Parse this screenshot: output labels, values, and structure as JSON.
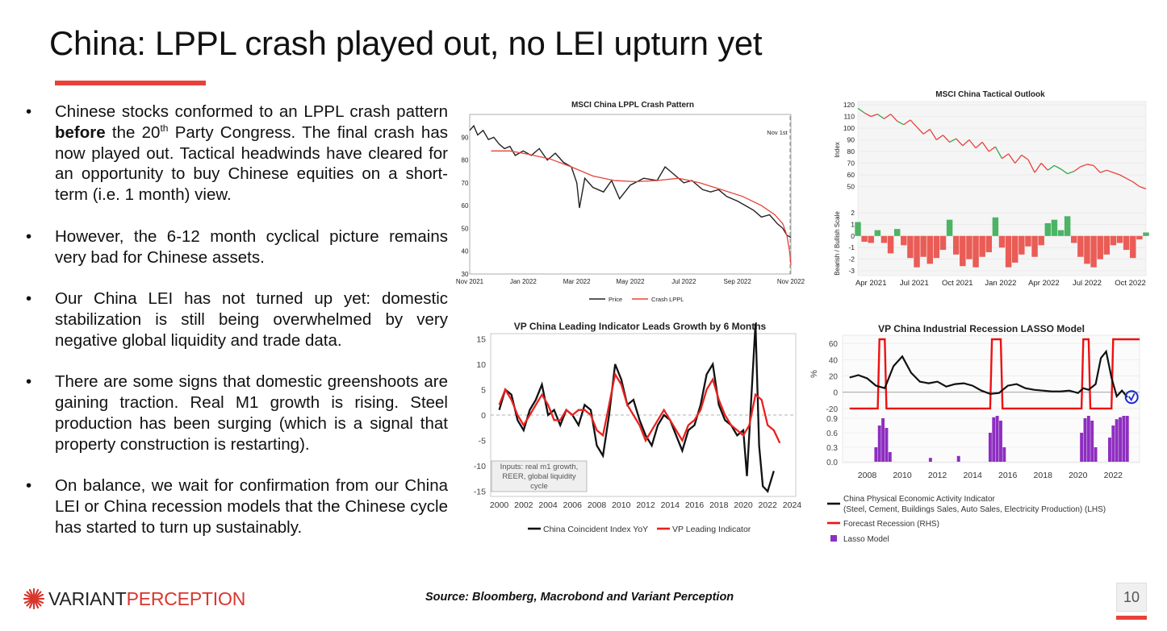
{
  "slide": {
    "title": "China: LPPL crash played out, no LEI upturn yet",
    "page_number": "10",
    "source": "Source: Bloomberg, Macrobond and Variant Perception",
    "accent_color": "#e8413a",
    "logo": {
      "part1": "VARIANT",
      "part2": "PERCEPTION",
      "icon": "starburst-icon"
    }
  },
  "bullets": [
    {
      "segments": [
        {
          "text": "Chinese stocks conformed to an LPPL crash pattern "
        },
        {
          "text": "before",
          "bold": true
        },
        {
          "text": " the 20"
        },
        {
          "text": "th",
          "sup": true
        },
        {
          "text": " Party Congress.  The final crash has now played out.  Tactical headwinds have cleared for an opportunity to buy Chinese equities on a short-term (i.e. 1 month) view."
        }
      ]
    },
    {
      "segments": [
        {
          "text": "However, the 6-12 month cyclical picture remains very bad for Chinese assets."
        }
      ]
    },
    {
      "segments": [
        {
          "text": "Our China LEI has not turned up yet: domestic stabilization is still being overwhelmed by very negative global liquidity and trade data."
        }
      ]
    },
    {
      "segments": [
        {
          "text": "There are some signs that domestic greenshoots are gaining traction.  Real M1 growth is rising. Steel production has been surging (which is a signal that property construction is restarting)."
        }
      ]
    },
    {
      "segments": [
        {
          "text": "On balance, we wait for confirmation from our China LEI or China recession models that the Chinese cycle has started to turn up sustainably."
        }
      ]
    }
  ],
  "chart_data": [
    {
      "id": "lppl",
      "type": "line",
      "title": "MSCI China LPPL Crash Pattern",
      "x_ticks": [
        "Nov 2021",
        "Jan 2022",
        "Mar 2022",
        "May 2022",
        "Jul 2022",
        "Sep 2022",
        "Nov 2022"
      ],
      "ylim": [
        30,
        100
      ],
      "y_ticks": [
        30,
        40,
        50,
        60,
        70,
        80,
        90
      ],
      "annotation": "Nov 1st",
      "annotation_x": 11.97,
      "grid": false,
      "legend_position": "bottom",
      "series": [
        {
          "name": "Price",
          "color": "#222222",
          "x": [
            0,
            0.15,
            0.3,
            0.5,
            0.7,
            0.9,
            1.1,
            1.3,
            1.5,
            1.7,
            2.0,
            2.3,
            2.6,
            2.9,
            3.2,
            3.5,
            3.8,
            4.0,
            4.1,
            4.3,
            4.6,
            5.0,
            5.3,
            5.6,
            6.0,
            6.5,
            7.0,
            7.3,
            7.6,
            8.0,
            8.3,
            8.7,
            9.0,
            9.3,
            9.6,
            10.0,
            10.3,
            10.6,
            10.9,
            11.2,
            11.5,
            11.7,
            11.85,
            12.0
          ],
          "values": [
            93,
            95,
            91,
            93,
            89,
            90,
            87,
            85,
            86,
            82,
            84,
            82,
            85,
            80,
            83,
            79,
            77,
            70,
            59,
            72,
            68,
            66,
            71,
            63,
            69,
            72,
            71,
            77,
            74,
            70,
            71,
            67,
            66,
            67,
            64,
            62,
            60,
            58,
            55,
            56,
            52,
            50,
            47,
            46
          ]
        },
        {
          "name": "Crash LPPL",
          "color": "#e8413a",
          "x": [
            0.8,
            1.5,
            2.2,
            3.0,
            3.8,
            4.6,
            5.4,
            6.2,
            7.0,
            7.8,
            8.6,
            9.4,
            10.2,
            10.9,
            11.4,
            11.7,
            11.85,
            11.95,
            12.0
          ],
          "values": [
            84,
            84,
            82.5,
            80.5,
            77,
            73,
            71,
            70.5,
            71,
            72,
            70,
            67,
            64,
            60,
            56,
            52,
            47,
            40,
            34
          ]
        }
      ]
    },
    {
      "id": "tactical",
      "type": "line",
      "title": "MSCI China Tactical Outlook",
      "x_ticks": [
        "Apr 2021",
        "Jul 2021",
        "Oct 2021",
        "Jan 2022",
        "Apr 2022",
        "Jul 2022",
        "Oct 2022"
      ],
      "top_ylabel": "Index",
      "top_ylim": [
        40,
        120
      ],
      "top_y_ticks": [
        50,
        60,
        70,
        80,
        90,
        100,
        110,
        120
      ],
      "bottom_ylabel": "Bearish / Bullish Scale",
      "bottom_ylim": [
        -3,
        2
      ],
      "bottom_y_ticks": [
        -3,
        -2,
        -1,
        0,
        1,
        2
      ],
      "colors": {
        "bullish": "#2ea84a",
        "bearish": "#e8413a"
      },
      "series": [
        {
          "name": "Index",
          "x": [
            0,
            0.5,
            1.0,
            1.5,
            2.0,
            2.5,
            3.0,
            3.5,
            4.0,
            4.5,
            5.0,
            5.5,
            6.0,
            6.5,
            7.0,
            7.5,
            8.0,
            8.5,
            9.0,
            9.5,
            10.0,
            10.5,
            11.0,
            11.5,
            12.0,
            12.5,
            13.0,
            13.5,
            14.0,
            14.5,
            15.0,
            15.5,
            16.0,
            16.5,
            17.0,
            17.5,
            18.0,
            18.5,
            19.0,
            19.5,
            20.0,
            20.5,
            21.0,
            21.5,
            22.0
          ],
          "values": [
            117,
            113,
            110,
            112,
            108,
            112,
            106,
            103,
            107,
            101,
            95,
            99,
            90,
            94,
            88,
            91,
            85,
            90,
            83,
            88,
            80,
            84,
            74,
            78,
            70,
            77,
            73,
            62,
            70,
            64,
            68,
            65,
            61,
            63,
            67,
            69,
            68,
            62,
            64,
            62,
            60,
            57,
            54,
            50,
            48
          ]
        },
        {
          "name": "Bearish / Bullish Scale",
          "x": [
            0,
            0.5,
            1.0,
            1.5,
            2.0,
            2.5,
            3.0,
            3.5,
            4.0,
            4.5,
            5.0,
            5.5,
            6.0,
            6.5,
            7.0,
            7.5,
            8.0,
            8.5,
            9.0,
            9.5,
            10.0,
            10.5,
            11.0,
            11.5,
            12.0,
            12.5,
            13.0,
            13.5,
            14.0,
            14.5,
            15.0,
            15.5,
            16.0,
            16.5,
            17.0,
            17.5,
            18.0,
            18.5,
            19.0,
            19.5,
            20.0,
            20.5,
            21.0,
            21.5,
            22.0
          ],
          "values": [
            1.2,
            -0.5,
            -0.6,
            0.5,
            -0.6,
            -1.5,
            0.6,
            -0.8,
            -1.9,
            -2.7,
            -1.8,
            -2.4,
            -1.9,
            -1.2,
            1.4,
            -1.6,
            -2.6,
            -2.0,
            -2.7,
            -1.8,
            -1.4,
            1.6,
            -1.0,
            -2.7,
            -2.3,
            -1.6,
            -0.9,
            -1.8,
            -0.8,
            1.1,
            1.4,
            0.5,
            1.7,
            -0.6,
            -1.8,
            -2.4,
            -2.7,
            -2.0,
            -1.6,
            -0.8,
            -0.6,
            -1.2,
            -1.9,
            -0.3,
            0.3
          ]
        }
      ]
    },
    {
      "id": "lei",
      "type": "line",
      "title": "VP China Leading Indicator Leads Growth by 6 Months",
      "x_ticks": [
        "2000",
        "2002",
        "2004",
        "2006",
        "2008",
        "2010",
        "2012",
        "2014",
        "2016",
        "2018",
        "2020",
        "2022",
        "2024"
      ],
      "ylim": [
        -16,
        16
      ],
      "y_ticks": [
        -15,
        -10,
        -5,
        0,
        5,
        10,
        15
      ],
      "note": "Inputs: real m1 growth, REER, global liquidity cycle",
      "legend_position": "bottom",
      "series": [
        {
          "name": "China Coincident Index YoY",
          "color": "#111111",
          "x": [
            2000,
            2000.5,
            2001,
            2001.5,
            2002,
            2002.5,
            2003,
            2003.5,
            2004,
            2004.5,
            2005,
            2005.5,
            2006,
            2006.5,
            2007,
            2007.5,
            2008,
            2008.5,
            2009,
            2009.5,
            2010,
            2010.5,
            2011,
            2011.5,
            2012,
            2012.5,
            2013,
            2013.5,
            2014,
            2014.5,
            2015,
            2015.5,
            2016,
            2016.5,
            2017,
            2017.5,
            2018,
            2018.5,
            2019,
            2019.5,
            2020,
            2020.3,
            2020.6,
            2021,
            2021.3,
            2021.6,
            2022,
            2022.5
          ],
          "values": [
            1,
            5,
            4,
            -1,
            -3,
            1,
            3,
            6,
            0,
            1,
            -2,
            1,
            0,
            -2,
            2,
            1,
            -6,
            -8,
            0,
            10,
            7,
            2,
            3,
            -1,
            -4,
            -6,
            -2,
            0,
            -1,
            -4,
            -7,
            -3,
            -2,
            2,
            8,
            10,
            2,
            -1,
            -2,
            -4,
            -3,
            -12,
            1,
            18,
            -6,
            -14,
            -15,
            -11
          ]
        },
        {
          "name": "VP Leading Indicator",
          "color": "#e8211f",
          "x": [
            2000,
            2000.5,
            2001,
            2001.5,
            2002,
            2002.5,
            2003,
            2003.5,
            2004,
            2004.5,
            2005,
            2005.5,
            2006,
            2006.5,
            2007,
            2007.5,
            2008,
            2008.5,
            2009,
            2009.5,
            2010,
            2010.5,
            2011,
            2011.5,
            2012,
            2012.5,
            2013,
            2013.5,
            2014,
            2014.5,
            2015,
            2015.5,
            2016,
            2016.5,
            2017,
            2017.5,
            2018,
            2018.5,
            2019,
            2019.5,
            2020,
            2020.5,
            2021,
            2021.5,
            2022,
            2022.5,
            2023
          ],
          "values": [
            2,
            5,
            3,
            0,
            -2,
            0,
            2,
            4,
            2,
            -1,
            -1,
            1,
            0,
            1,
            1,
            0,
            -3,
            -4,
            2,
            8,
            6,
            2,
            0,
            -2,
            -5,
            -3,
            -1,
            1,
            -1,
            -3,
            -5,
            -2,
            -1,
            1,
            5,
            7,
            3,
            0,
            -2,
            -3,
            -4,
            -2,
            4,
            3,
            -2,
            -3,
            -5.5
          ]
        }
      ]
    },
    {
      "id": "lasso",
      "type": "line",
      "title": "VP China Industrial Recession LASSO Model",
      "x_ticks": [
        "2008",
        "2010",
        "2012",
        "2014",
        "2016",
        "2018",
        "2020",
        "2022"
      ],
      "top_ylabel": "%",
      "top_ylim": [
        -25,
        68
      ],
      "top_y_ticks": [
        -20,
        0,
        20,
        40,
        60
      ],
      "bottom_ylim": [
        0,
        1
      ],
      "bottom_y_ticks": [
        0.0,
        0.3,
        0.6,
        0.9
      ],
      "series": [
        {
          "name": "China Physical Economic Activity Indicator (Steel, Cement, Buildings Sales, Auto Sales, Electricity Production) (LHS)",
          "color": "#111111",
          "x": [
            2007,
            2007.5,
            2008,
            2008.5,
            2009,
            2009.5,
            2010,
            2010.5,
            2011,
            2011.5,
            2012,
            2012.5,
            2013,
            2013.5,
            2014,
            2014.5,
            2015,
            2015.5,
            2016,
            2016.5,
            2017,
            2017.5,
            2018,
            2018.5,
            2019,
            2019.5,
            2020,
            2020.3,
            2020.6,
            2021,
            2021.3,
            2021.6,
            2021.9,
            2022.2,
            2022.5,
            2022.8
          ],
          "values": [
            18,
            21,
            17,
            8,
            5,
            32,
            44,
            24,
            13,
            11,
            13,
            7,
            10,
            11,
            8,
            2,
            -2,
            -1,
            8,
            10,
            5,
            3,
            2,
            1,
            1,
            2,
            -1,
            5,
            3,
            10,
            42,
            50,
            18,
            -5,
            2,
            -6
          ]
        },
        {
          "name": "Forecast Recession (RHS)",
          "color": "#ee1111",
          "x": [
            2007,
            2008.6,
            2008.7,
            2009.0,
            2009.1,
            2015.0,
            2015.1,
            2015.6,
            2015.7,
            2020.2,
            2020.3,
            2020.6,
            2020.7,
            2021.9,
            2022.0,
            2023.5
          ],
          "values": [
            0,
            0,
            1,
            1,
            0,
            0,
            1,
            1,
            0,
            0,
            1,
            1,
            0,
            0,
            1,
            1
          ]
        },
        {
          "name": "Lasso Model",
          "color": "#8e2ec0",
          "x": [
            2008.5,
            2008.7,
            2008.9,
            2009.1,
            2009.3,
            2011.6,
            2013.2,
            2015.0,
            2015.2,
            2015.4,
            2015.6,
            2015.8,
            2020.2,
            2020.4,
            2020.6,
            2020.8,
            2021.0,
            2021.8,
            2022.0,
            2022.2,
            2022.4,
            2022.6,
            2022.8
          ],
          "values": [
            0.3,
            0.75,
            0.9,
            0.7,
            0.2,
            0.08,
            0.12,
            0.6,
            0.92,
            0.95,
            0.85,
            0.3,
            0.6,
            0.9,
            0.95,
            0.85,
            0.3,
            0.5,
            0.75,
            0.88,
            0.92,
            0.95,
            0.95
          ]
        }
      ],
      "annotation_icon": "check-circle-icon",
      "annotation_color": "#1a2ad6"
    }
  ]
}
